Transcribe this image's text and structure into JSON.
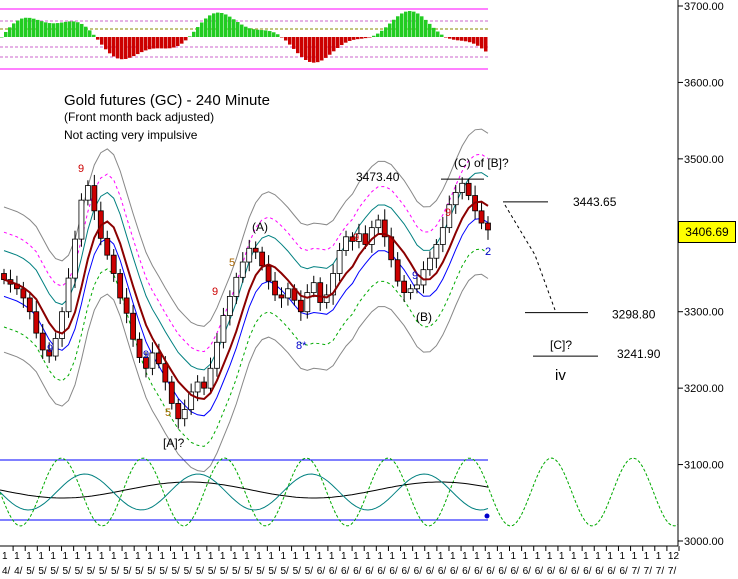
{
  "header": {
    "title": "Gold futures (GC) - 240 Minute",
    "subtitle": "(Front month back adjusted)",
    "note": "Not acting very impulsive"
  },
  "price_badge": "3406.69",
  "colors": {
    "up_candle": "#ffffff",
    "down_candle": "#cc0000",
    "ma_line": "#8b0000",
    "osc_positive": "#22cc22",
    "osc_negative": "#cc0000",
    "band_inner": "#0000ff",
    "band_teal": "#008080",
    "band_magenta": "#ff00ff",
    "band_green": "#00aa00",
    "band_gray": "#888888"
  },
  "chart_data": {
    "type": "candlestick",
    "yaxis": {
      "ticks": [
        3000,
        3100,
        3200,
        3300,
        3400,
        3500,
        3600,
        3700
      ],
      "tick_labels": [
        "3000.00",
        "3100.00",
        "3200.00",
        "3300.00",
        "3400.00",
        "3500.00",
        "3600.00",
        "3700.00"
      ],
      "position": "right"
    },
    "xaxis": {
      "top_labels": [
        "1",
        "1",
        "1",
        "1",
        "1",
        "1",
        "1",
        "1",
        "1",
        "1",
        "1",
        "1",
        "1",
        "1",
        "1",
        "1",
        "1",
        "1",
        "1",
        "1",
        "1",
        "1",
        "1",
        "1",
        "1",
        "1",
        "1",
        "1",
        "1",
        "1",
        "1",
        "1",
        "1",
        "1",
        "1",
        "1",
        "1",
        "1",
        "1",
        "1",
        "1",
        "1",
        "1",
        "1",
        "1",
        "1",
        "1",
        "1",
        "1",
        "1",
        "1",
        "1",
        "1",
        "1",
        "1",
        "12"
      ],
      "bottom_labels": [
        "4/",
        "4/",
        "5/",
        "5/",
        "5/",
        "5/",
        "5/",
        "5/",
        "5/",
        "5/",
        "5/",
        "5/",
        "5/",
        "5/",
        "5/",
        "5/",
        "5/",
        "5/",
        "5/",
        "5/",
        "5/",
        "5/",
        "5/",
        "5/",
        "5/",
        "5/",
        "6/",
        "6/",
        "6/",
        "6/",
        "6/",
        "6/",
        "6/",
        "6/",
        "6/",
        "6/",
        "6/",
        "6/",
        "6/",
        "6/",
        "6/",
        "6/",
        "6/",
        "6/",
        "6/",
        "6/",
        "6/",
        "6/",
        "6/",
        "6/",
        "6/",
        "6/",
        "7/",
        "7/",
        "7/",
        "7/"
      ]
    },
    "closes": [
      3342,
      3336,
      3330,
      3318,
      3300,
      3272,
      3250,
      3242,
      3265,
      3300,
      3344,
      3395,
      3446,
      3465,
      3432,
      3396,
      3374,
      3350,
      3318,
      3298,
      3264,
      3240,
      3226,
      3246,
      3232,
      3208,
      3180,
      3160,
      3172,
      3195,
      3208,
      3200,
      3226,
      3260,
      3295,
      3320,
      3345,
      3365,
      3383,
      3378,
      3360,
      3340,
      3322,
      3318,
      3330,
      3315,
      3300,
      3325,
      3338,
      3312,
      3322,
      3350,
      3380,
      3398,
      3392,
      3402,
      3388,
      3410,
      3420,
      3398,
      3368,
      3340,
      3325,
      3330,
      3335,
      3355,
      3370,
      3388,
      3410,
      3440,
      3456,
      3468,
      3452,
      3432,
      3416,
      3407
    ],
    "price_labels": [
      {
        "text": "3473.40",
        "price": 3473.4
      },
      {
        "text": "3443.65",
        "price": 3443.65
      },
      {
        "text": "3298.80",
        "price": 3298.8
      },
      {
        "text": "3241.90",
        "price": 3241.9
      }
    ],
    "wave_labels": [
      "(A)",
      "(B)",
      "(C) of [B]?",
      "[A]?",
      "[C]?",
      "iv"
    ],
    "count_labels": [
      {
        "text": "9",
        "color": "#cc0000"
      },
      {
        "text": "9",
        "color": "#0000cc"
      },
      {
        "text": "9",
        "color": "#0000cc"
      },
      {
        "text": "5",
        "color": "#aa6600"
      },
      {
        "text": "9",
        "color": "#cc0000"
      },
      {
        "text": "5",
        "color": "#aa6600"
      },
      {
        "text": "8*",
        "color": "#0000cc"
      },
      {
        "text": "9",
        "color": "#cc0000"
      },
      {
        "text": "9",
        "color": "#0000cc"
      },
      {
        "text": "9",
        "color": "#cc0000"
      },
      {
        "text": "2",
        "color": "#0000cc"
      }
    ],
    "grid": false,
    "legend": "none"
  }
}
